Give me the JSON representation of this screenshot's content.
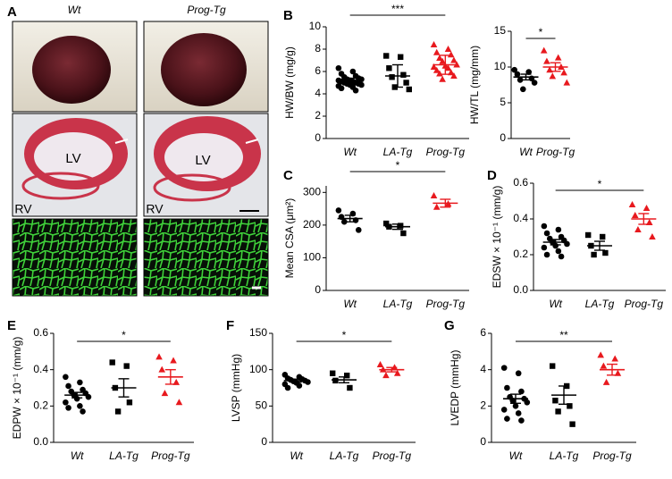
{
  "figure_a": {
    "panel": "A",
    "columns": [
      "Wt",
      "Prog-Tg"
    ],
    "labels": [
      [
        "LV",
        "RV"
      ],
      [
        "LV",
        "RV"
      ]
    ]
  },
  "chart_data": [
    {
      "type": "dotplot",
      "panel": "B",
      "ylabel": "HW/BW (mg/g)",
      "categories": [
        "Wt",
        "LA-Tg",
        "Prog-Tg"
      ],
      "colors": [
        "#000000",
        "#000000",
        "#e8191e"
      ],
      "markers": [
        "circle",
        "square",
        "triangle"
      ],
      "points": [
        [
          6.3,
          6.0,
          5.8,
          5.6,
          5.5,
          5.4,
          5.3,
          5.3,
          5.2,
          5.2,
          5.1,
          5.1,
          5.0,
          5.0,
          4.9,
          4.9,
          4.8,
          4.8,
          4.7,
          4.6,
          4.5,
          4.3
        ],
        [
          7.4,
          7.3,
          6.3,
          5.7,
          5.5,
          5.0,
          4.6,
          4.4
        ],
        [
          8.4,
          8.0,
          7.7,
          7.5,
          7.2,
          7.0,
          6.9,
          6.6,
          6.5,
          6.4,
          6.3,
          6.1,
          5.9,
          5.8,
          5.6,
          5.3
        ]
      ],
      "means": [
        5.2,
        5.6,
        6.6
      ],
      "errors": [
        0.2,
        1.0,
        0.85
      ],
      "significance": "***",
      "ylim": [
        0,
        10
      ],
      "yticks": [
        0,
        2,
        4,
        6,
        8,
        10
      ]
    },
    {
      "type": "dotplot",
      "panel": null,
      "ylabel": "HW/TL (mg/mm)",
      "categories": [
        "Wt",
        "Prog-Tg"
      ],
      "colors": [
        "#000000",
        "#e8191e"
      ],
      "markers": [
        "circle",
        "triangle"
      ],
      "points": [
        [
          9.6,
          9.3,
          9.0,
          8.4,
          8.2,
          7.8,
          6.9
        ],
        [
          12.3,
          11.3,
          10.8,
          10.0,
          9.6,
          9.2,
          8.7,
          7.8
        ]
      ],
      "means": [
        8.6,
        10.0
      ],
      "errors": [
        0.4,
        0.6
      ],
      "significance": "*",
      "ylim": [
        0,
        15
      ],
      "yticks": [
        0,
        5,
        10,
        15
      ]
    },
    {
      "type": "dotplot",
      "panel": "C",
      "ylabel": "Mean CSA (μm²)",
      "categories": [
        "Wt",
        "LA-Tg",
        "Prog-Tg"
      ],
      "colors": [
        "#000000",
        "#000000",
        "#e8191e"
      ],
      "markers": [
        "circle",
        "square",
        "triangle"
      ],
      "points": [
        [
          245,
          235,
          225,
          215,
          210,
          185
        ],
        [
          205,
          198,
          195,
          175
        ],
        [
          290,
          265,
          255
        ]
      ],
      "means": [
        220,
        195,
        267
      ],
      "errors": [
        10,
        8,
        12
      ],
      "significance": "*",
      "ylim": [
        0,
        320
      ],
      "yticks": [
        0,
        100,
        200,
        300
      ]
    },
    {
      "type": "dotplot",
      "panel": "D",
      "ylabel": "EDSW × 10⁻¹ (mm/g)",
      "categories": [
        "Wt",
        "LA-Tg",
        "Prog-Tg"
      ],
      "colors": [
        "#000000",
        "#000000",
        "#e8191e"
      ],
      "markers": [
        "circle",
        "square",
        "triangle"
      ],
      "points": [
        [
          0.36,
          0.34,
          0.32,
          0.3,
          0.29,
          0.28,
          0.27,
          0.26,
          0.25,
          0.24,
          0.22,
          0.2,
          0.19
        ],
        [
          0.31,
          0.3,
          0.25,
          0.21,
          0.2
        ],
        [
          0.48,
          0.46,
          0.42,
          0.38,
          0.34,
          0.3
        ]
      ],
      "means": [
        0.27,
        0.25,
        0.4
      ],
      "errors": [
        0.015,
        0.025,
        0.03
      ],
      "significance": "*",
      "ylim": [
        0,
        0.6
      ],
      "yticks": [
        {
          "value": 0,
          "label": "0.0"
        },
        0.2,
        0.4,
        0.6
      ]
    },
    {
      "type": "dotplot",
      "panel": "E",
      "ylabel": "EDPW × 10⁻¹ (mm/g)",
      "categories": [
        "Wt",
        "LA-Tg",
        "Prog-Tg"
      ],
      "colors": [
        "#000000",
        "#000000",
        "#e8191e"
      ],
      "markers": [
        "circle",
        "square",
        "triangle"
      ],
      "points": [
        [
          0.36,
          0.33,
          0.31,
          0.29,
          0.28,
          0.27,
          0.26,
          0.25,
          0.24,
          0.22,
          0.2,
          0.19,
          0.17
        ],
        [
          0.44,
          0.42,
          0.3,
          0.22,
          0.17
        ],
        [
          0.47,
          0.45,
          0.4,
          0.33,
          0.27,
          0.22
        ]
      ],
      "means": [
        0.26,
        0.3,
        0.36
      ],
      "errors": [
        0.015,
        0.05,
        0.04
      ],
      "significance": "*",
      "ylim": [
        0,
        0.6
      ],
      "yticks": [
        {
          "value": 0,
          "label": "0.0"
        },
        0.2,
        0.4,
        0.6
      ]
    },
    {
      "type": "dotplot",
      "panel": "F",
      "ylabel": "LVSP (mmHg)",
      "categories": [
        "Wt",
        "LA-Tg",
        "Prog-Tg"
      ],
      "colors": [
        "#000000",
        "#000000",
        "#e8191e"
      ],
      "markers": [
        "circle",
        "square",
        "triangle"
      ],
      "points": [
        [
          93,
          90,
          88,
          87,
          86,
          85,
          84,
          83,
          82,
          80,
          78,
          75
        ],
        [
          95,
          92,
          85,
          75
        ],
        [
          107,
          103,
          100,
          95,
          92
        ]
      ],
      "means": [
        85,
        86,
        100
      ],
      "errors": [
        2,
        4,
        3
      ],
      "significance": "*",
      "ylim": [
        0,
        150
      ],
      "yticks": [
        0,
        50,
        100,
        150
      ]
    },
    {
      "type": "dotplot",
      "panel": "G",
      "ylabel": "LVEDP (mmHg)",
      "categories": [
        "Wt",
        "LA-Tg",
        "Prog-Tg"
      ],
      "colors": [
        "#000000",
        "#000000",
        "#e8191e"
      ],
      "markers": [
        "circle",
        "square",
        "triangle"
      ],
      "points": [
        [
          4.1,
          3.8,
          3.0,
          2.8,
          2.5,
          2.4,
          2.3,
          2.2,
          2.0,
          1.8,
          1.6,
          1.3,
          1.2
        ],
        [
          4.2,
          3.1,
          2.3,
          2.0,
          1.7,
          1.0
        ],
        [
          4.8,
          4.6,
          4.2,
          3.8,
          3.3
        ]
      ],
      "means": [
        2.4,
        2.6,
        4.0
      ],
      "errors": [
        0.25,
        0.5,
        0.3
      ],
      "significance": "**",
      "ylim": [
        0,
        6
      ],
      "yticks": [
        0,
        2,
        4,
        6
      ]
    }
  ]
}
